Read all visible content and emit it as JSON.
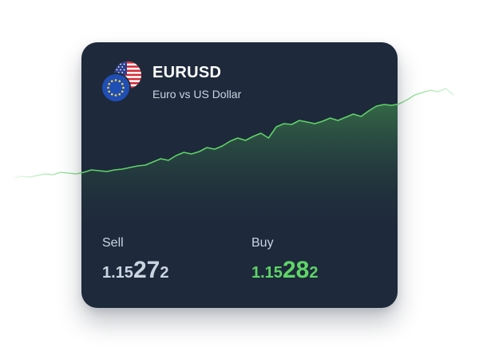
{
  "instrument": {
    "symbol": "EURUSD",
    "name": "Euro vs US Dollar",
    "flags": [
      "us-flag-icon",
      "eu-flag-icon"
    ]
  },
  "quotes": {
    "sell": {
      "label": "Sell",
      "lead": "1.15",
      "big": "27",
      "tail": "2"
    },
    "buy": {
      "label": "Buy",
      "lead": "1.15",
      "big": "28",
      "tail": "2"
    }
  },
  "colors": {
    "card_bg": "#1e293b",
    "line": "#5fd466",
    "sell_text": "#cbd5e1",
    "buy_text": "#5fd466",
    "page_bg": "#ffffff"
  },
  "chart_data": {
    "type": "area",
    "values": [
      20.0,
      22.0,
      21.0,
      23.0,
      25.0,
      24.0,
      27.0,
      26.0,
      25.0,
      27.0,
      30.0,
      29.0,
      28.0,
      30.0,
      31.0,
      33.0,
      35.0,
      36.0,
      40.0,
      44.0,
      42.0,
      48.0,
      52.0,
      50.0,
      53.0,
      58.0,
      56.0,
      60.0,
      66.0,
      70.0,
      67.0,
      72.0,
      76.0,
      70.0,
      84.0,
      88.0,
      87.0,
      92.0,
      90.0,
      88.0,
      91.0,
      95.0,
      92.0,
      96.0,
      100.0,
      97.0,
      104.0,
      110.0,
      112.0,
      111.0,
      113.0,
      118.0,
      124.0,
      127.0,
      130.0,
      128.0,
      132.0,
      124.0
    ]
  }
}
